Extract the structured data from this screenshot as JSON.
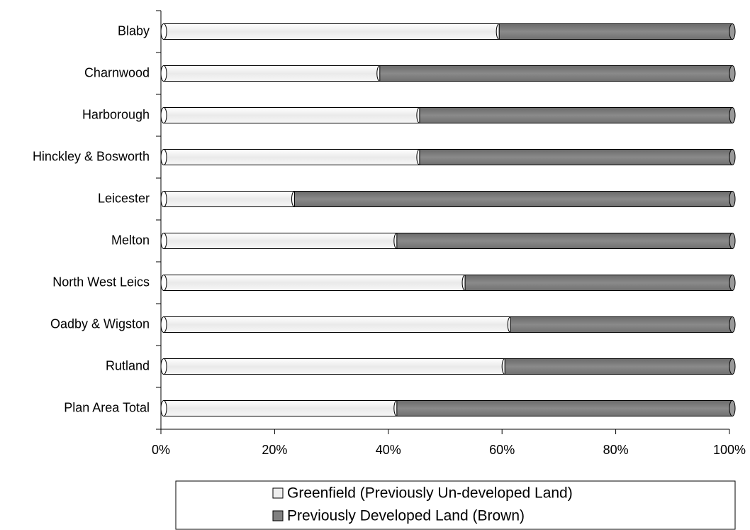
{
  "chart_data": {
    "type": "stacked-bar-horizontal",
    "categories": [
      "Blaby",
      "Charnwood",
      "Harborough",
      "Hinckley & Bosworth",
      "Leicester",
      "Melton",
      "North West Leics",
      "Oadby & Wigston",
      "Rutland",
      "Plan Area Total"
    ],
    "series": [
      {
        "name": "Greenfield (Previously Un-developed Land)",
        "color": "#eeeeee",
        "values": [
          59,
          38,
          45,
          45,
          23,
          41,
          53,
          61,
          60,
          41
        ]
      },
      {
        "name": "Previously Developed Land (Brown)",
        "color": "#808080",
        "values": [
          41,
          62,
          55,
          55,
          77,
          59,
          47,
          39,
          40,
          59
        ]
      }
    ],
    "xlim": [
      0,
      100
    ],
    "xticks": [
      {
        "value": 0,
        "label": "0%"
      },
      {
        "value": 20,
        "label": "20%"
      },
      {
        "value": 40,
        "label": "40%"
      },
      {
        "value": 60,
        "label": "60%"
      },
      {
        "value": 80,
        "label": "80%"
      },
      {
        "value": 100,
        "label": "100%"
      }
    ],
    "legend": "bottom"
  }
}
